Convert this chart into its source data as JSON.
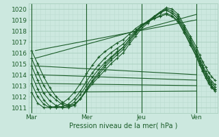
{
  "title": "",
  "xlabel": "Pression niveau de la mer( hPa )",
  "bg_color": "#cce8df",
  "plot_bg_color": "#cce8df",
  "grid_major_color": "#aacfbf",
  "grid_minor_color": "#bbdbd0",
  "line_color": "#1a5c28",
  "ylim": [
    1010.5,
    1020.5
  ],
  "yticks": [
    1011,
    1012,
    1013,
    1014,
    1015,
    1016,
    1017,
    1018,
    1019,
    1020
  ],
  "xtick_labels": [
    "Mar",
    "Mer",
    "Jeu",
    "Ven"
  ],
  "xtick_positions": [
    0,
    72,
    144,
    216
  ],
  "xlim": [
    -4,
    244
  ],
  "straight_lines": [
    {
      "x0": 5,
      "y0": 1016.2,
      "x1": 216,
      "y1": 1019.0
    },
    {
      "x0": 5,
      "y0": 1015.5,
      "x1": 216,
      "y1": 1019.5
    },
    {
      "x0": 5,
      "y0": 1014.8,
      "x1": 216,
      "y1": 1014.0
    },
    {
      "x0": 5,
      "y0": 1014.0,
      "x1": 216,
      "y1": 1013.5
    },
    {
      "x0": 5,
      "y0": 1013.2,
      "x1": 216,
      "y1": 1013.0
    },
    {
      "x0": 5,
      "y0": 1012.4,
      "x1": 216,
      "y1": 1012.5
    }
  ],
  "curved_series": [
    {
      "x": [
        0,
        8,
        16,
        24,
        32,
        40,
        48,
        56,
        64,
        72,
        80,
        88,
        96,
        104,
        112,
        120,
        128,
        136,
        144,
        152,
        160,
        168,
        176,
        184,
        192,
        200,
        208,
        216,
        220,
        224,
        228,
        232,
        236,
        240
      ],
      "y": [
        1016.2,
        1015.0,
        1013.8,
        1012.8,
        1012.0,
        1011.5,
        1011.2,
        1011.3,
        1011.8,
        1012.5,
        1013.2,
        1013.8,
        1014.4,
        1015.0,
        1015.5,
        1016.0,
        1016.8,
        1017.5,
        1018.2,
        1018.7,
        1019.2,
        1019.7,
        1020.1,
        1020.0,
        1019.5,
        1018.5,
        1017.5,
        1016.5,
        1015.8,
        1015.2,
        1014.7,
        1014.2,
        1013.8,
        1013.5
      ]
    },
    {
      "x": [
        0,
        8,
        16,
        24,
        32,
        40,
        48,
        56,
        64,
        72,
        80,
        88,
        96,
        104,
        112,
        120,
        128,
        136,
        144,
        152,
        160,
        168,
        176,
        184,
        192,
        200,
        208,
        216,
        220,
        224,
        228,
        232,
        236,
        240
      ],
      "y": [
        1015.5,
        1014.2,
        1013.0,
        1012.2,
        1011.7,
        1011.3,
        1011.1,
        1011.2,
        1011.8,
        1012.6,
        1013.4,
        1014.0,
        1014.7,
        1015.3,
        1015.8,
        1016.3,
        1017.0,
        1017.7,
        1018.4,
        1018.8,
        1019.3,
        1019.7,
        1020.0,
        1019.8,
        1019.3,
        1018.3,
        1017.3,
        1016.2,
        1015.5,
        1014.9,
        1014.3,
        1013.8,
        1013.4,
        1013.1
      ]
    },
    {
      "x": [
        0,
        8,
        16,
        24,
        32,
        40,
        48,
        56,
        64,
        72,
        80,
        88,
        96,
        104,
        112,
        120,
        128,
        136,
        144,
        152,
        160,
        168,
        176,
        184,
        192,
        200,
        208,
        216,
        220,
        224,
        228,
        232,
        236,
        240
      ],
      "y": [
        1014.8,
        1013.5,
        1012.3,
        1011.6,
        1011.2,
        1011.0,
        1011.0,
        1011.2,
        1011.8,
        1012.7,
        1013.5,
        1014.2,
        1014.9,
        1015.5,
        1016.0,
        1016.5,
        1017.2,
        1017.9,
        1018.5,
        1018.9,
        1019.3,
        1019.7,
        1019.9,
        1019.6,
        1019.1,
        1018.1,
        1017.1,
        1016.0,
        1015.3,
        1014.7,
        1014.1,
        1013.6,
        1013.2,
        1012.9
      ]
    },
    {
      "x": [
        0,
        8,
        16,
        24,
        32,
        40,
        48,
        56,
        64,
        72,
        80,
        88,
        96,
        104,
        112,
        120,
        128,
        136,
        144,
        152,
        160,
        168,
        176,
        184,
        192,
        200,
        208,
        216,
        220,
        224,
        228,
        232,
        236,
        240
      ],
      "y": [
        1014.0,
        1012.7,
        1011.7,
        1011.1,
        1011.0,
        1011.0,
        1011.1,
        1011.5,
        1012.2,
        1013.0,
        1013.8,
        1014.5,
        1015.1,
        1015.6,
        1016.1,
        1016.5,
        1017.2,
        1017.8,
        1018.4,
        1018.8,
        1019.2,
        1019.6,
        1019.9,
        1019.6,
        1019.1,
        1018.1,
        1017.0,
        1015.9,
        1015.2,
        1014.6,
        1014.0,
        1013.5,
        1013.0,
        1012.7
      ]
    },
    {
      "x": [
        0,
        8,
        16,
        24,
        32,
        40,
        48,
        56,
        64,
        72,
        80,
        88,
        96,
        104,
        112,
        120,
        128,
        136,
        144,
        152,
        160,
        168,
        176,
        184,
        192,
        200,
        208,
        216,
        220,
        224,
        228,
        232,
        236,
        240
      ],
      "y": [
        1013.2,
        1012.0,
        1011.3,
        1011.0,
        1011.0,
        1011.1,
        1011.3,
        1011.8,
        1012.5,
        1013.4,
        1014.2,
        1014.9,
        1015.5,
        1016.0,
        1016.4,
        1016.8,
        1017.4,
        1018.0,
        1018.5,
        1018.8,
        1019.1,
        1019.4,
        1019.6,
        1019.4,
        1018.9,
        1017.9,
        1016.8,
        1015.7,
        1015.0,
        1014.4,
        1013.8,
        1013.3,
        1012.9,
        1012.6
      ]
    },
    {
      "x": [
        0,
        8,
        16,
        24,
        32,
        40,
        48,
        56,
        64,
        72,
        80,
        88,
        96,
        104,
        112,
        120,
        128,
        136,
        144,
        152,
        160,
        168,
        176,
        184,
        192,
        200,
        208,
        216,
        220,
        224,
        228,
        232,
        236,
        240
      ],
      "y": [
        1012.4,
        1011.4,
        1011.0,
        1011.0,
        1011.1,
        1011.4,
        1011.8,
        1012.4,
        1013.2,
        1014.1,
        1014.9,
        1015.6,
        1016.1,
        1016.5,
        1016.9,
        1017.2,
        1017.7,
        1018.2,
        1018.6,
        1018.8,
        1019.1,
        1019.3,
        1019.5,
        1019.3,
        1018.8,
        1017.8,
        1016.7,
        1015.6,
        1014.9,
        1014.3,
        1013.7,
        1013.2,
        1012.8,
        1012.5
      ]
    }
  ]
}
